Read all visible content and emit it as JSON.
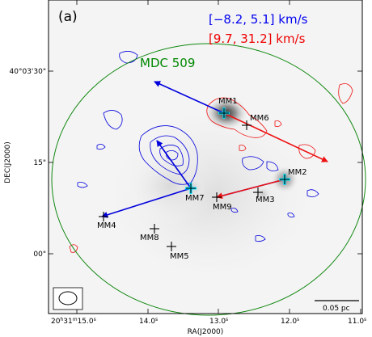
{
  "chart_data": {
    "type": "scatter",
    "panel_label": "(a)",
    "xlabel": "RA(J2000)",
    "ylabel": "DEC(J2000)",
    "x_ticks": [
      {
        "label": "20h31m15.0s",
        "prefix": "20",
        "h": "h",
        "m_val": "31",
        "m": "m",
        "s_val": "15.0",
        "s": "s"
      },
      {
        "label": "14.0s",
        "value": "14.0",
        "unit": "s"
      },
      {
        "label": "13.0s",
        "value": "13.0",
        "unit": "s"
      },
      {
        "label": "12.0s",
        "value": "12.0",
        "unit": "s"
      },
      {
        "label": "11.0s",
        "value": "11.0",
        "unit": "s"
      }
    ],
    "y_ticks": [
      "40°03'30\"",
      "15\"",
      "00\""
    ],
    "legend": [
      {
        "label": "[−8.2, 5.1] km/s",
        "color": "#0000ee"
      },
      {
        "label": "[9.7, 31.2] km/s",
        "color": "#ee0000"
      }
    ],
    "region_label": {
      "text": "MDC 509",
      "color": "#008800"
    },
    "scale_bar": "0.05 pc",
    "sources": [
      "MM1",
      "MM2",
      "MM3",
      "MM4",
      "MM5",
      "MM6",
      "MM7",
      "MM8",
      "MM9"
    ],
    "outflow_colors": {
      "blue": "#0000dd",
      "red": "#ee1111"
    }
  }
}
